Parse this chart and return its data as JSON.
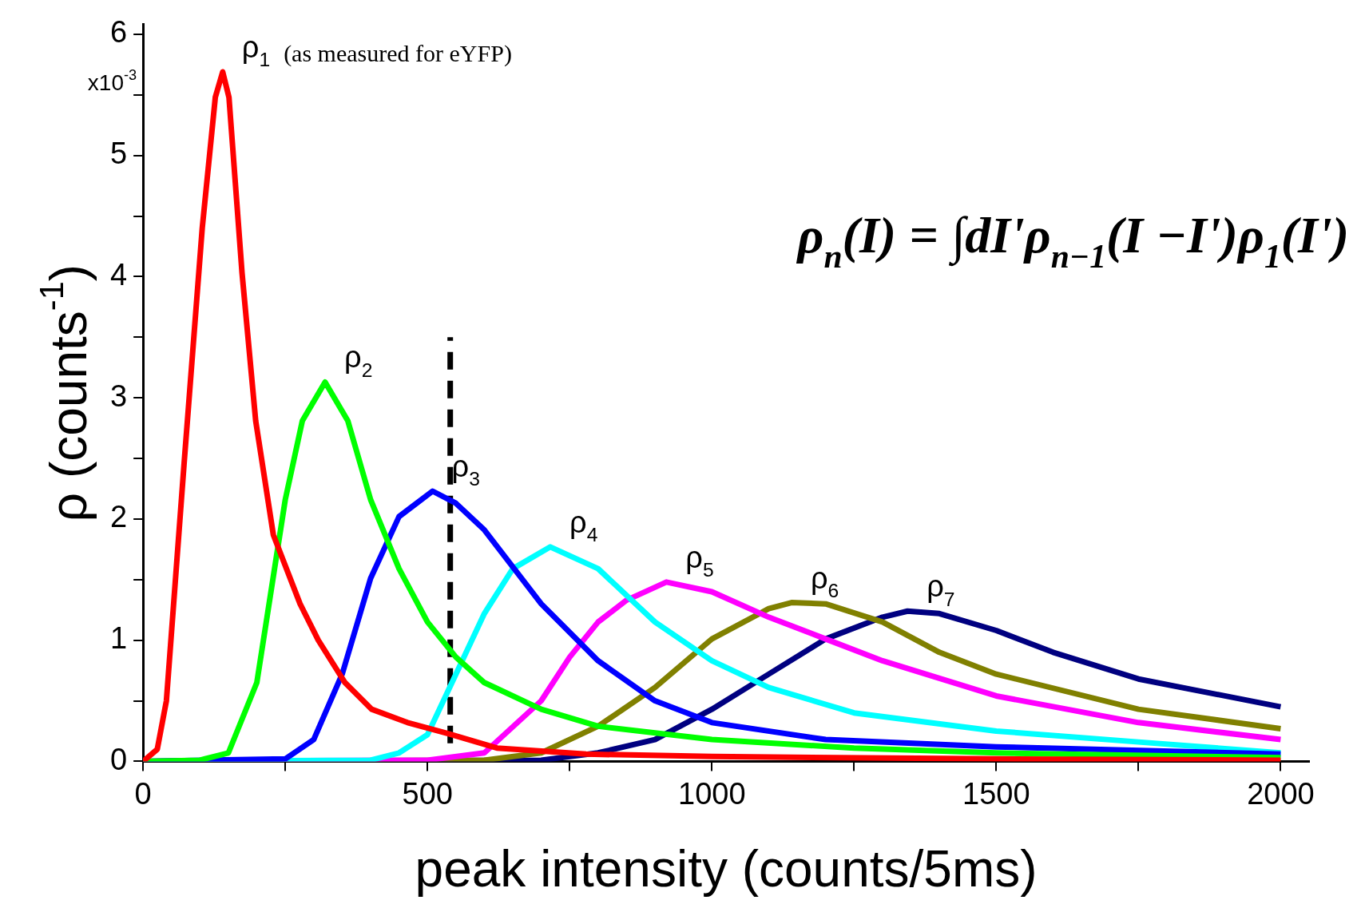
{
  "chart_data": {
    "type": "line",
    "xlabel": "peak intensity (counts/5ms)",
    "ylabel": "ρ (counts$^{-1}$)",
    "xlim": [
      0,
      2050
    ],
    "ylim": [
      0,
      6.08
    ],
    "xticks": [
      0,
      {
        "value": 250,
        "label": null
      },
      500,
      {
        "value": 750,
        "label": null
      },
      1000,
      {
        "value": 1250,
        "label": null
      },
      1500,
      {
        "value": 1750,
        "label": null
      },
      2000
    ],
    "yticks": [
      0,
      {
        "value": 0.5,
        "label": null
      },
      1,
      {
        "value": 1.5,
        "label": null
      },
      2,
      {
        "value": 2.5,
        "label": null
      },
      3,
      {
        "value": 3.5,
        "label": null
      },
      4,
      {
        "value": 4.5,
        "label": null
      },
      5,
      {
        "value": 5.5,
        "label": null
      },
      6
    ],
    "grid": false,
    "legend": false,
    "marker": "none",
    "line_style": "solid",
    "annotations": [
      "x10$^{-3}$",
      "(as measured for eYFP)",
      "ρ$_{n}$(I) = ∫dI'ρ$_{n−1}$(I −I')ρ$_{1}$(I')"
    ],
    "series": [
      {
        "name": "ρ$_{1}$",
        "color": "#ff0000",
        "x": [
          0,
          25,
          41,
          72,
          104,
          127,
          140,
          151,
          174,
          198,
          229,
          276,
          308,
          355,
          402,
          465,
          535,
          622,
          779,
          1000,
          1500,
          2000
        ],
        "values": [
          0,
          0.1,
          0.5,
          2.45,
          4.4,
          5.48,
          5.69,
          5.48,
          4.03,
          2.81,
          1.87,
          1.3,
          1.0,
          0.65,
          0.43,
          0.32,
          0.23,
          0.11,
          0.06,
          0.04,
          0.02,
          0.01
        ]
      },
      {
        "name": "ρ$_{2}$",
        "color": "#00ff00",
        "x": [
          0,
          100,
          150,
          200,
          250,
          280,
          320,
          360,
          400,
          450,
          500,
          550,
          600,
          700,
          800,
          1000,
          1250,
          1500,
          2000
        ],
        "values": [
          0,
          0.01,
          0.07,
          0.65,
          2.16,
          2.81,
          3.13,
          2.81,
          2.16,
          1.59,
          1.15,
          0.86,
          0.65,
          0.43,
          0.29,
          0.18,
          0.11,
          0.07,
          0.03
        ]
      },
      {
        "name": "ρ$_{3}$",
        "color": "#0000ff",
        "x": [
          0,
          250,
          300,
          350,
          400,
          450,
          509,
          550,
          600,
          700,
          800,
          900,
          1000,
          1200,
          1500,
          2000
        ],
        "values": [
          0,
          0.02,
          0.18,
          0.72,
          1.51,
          2.02,
          2.23,
          2.13,
          1.91,
          1.3,
          0.83,
          0.5,
          0.32,
          0.18,
          0.12,
          0.06
        ]
      },
      {
        "name": "ρ$_{4}$",
        "color": "#00ffff",
        "x": [
          0,
          400,
          450,
          500,
          550,
          600,
          650,
          716,
          800,
          900,
          1000,
          1100,
          1250,
          1500,
          1750,
          2000
        ],
        "values": [
          0,
          0.01,
          0.07,
          0.22,
          0.72,
          1.22,
          1.59,
          1.77,
          1.59,
          1.15,
          0.83,
          0.61,
          0.4,
          0.25,
          0.16,
          0.07
        ]
      },
      {
        "name": "ρ$_{5}$",
        "color": "#ff00ff",
        "x": [
          0,
          500,
          600,
          700,
          750,
          800,
          850,
          920,
          1000,
          1100,
          1200,
          1300,
          1500,
          1750,
          2000
        ],
        "values": [
          0,
          0.01,
          0.07,
          0.5,
          0.86,
          1.15,
          1.33,
          1.48,
          1.4,
          1.19,
          1.01,
          0.83,
          0.54,
          0.32,
          0.18
        ]
      },
      {
        "name": "ρ$_{6}$",
        "color": "#808000",
        "x": [
          0,
          600,
          700,
          800,
          900,
          1000,
          1100,
          1140,
          1200,
          1300,
          1400,
          1500,
          1750,
          2000
        ],
        "values": [
          0,
          0.01,
          0.07,
          0.29,
          0.61,
          1.01,
          1.26,
          1.31,
          1.3,
          1.15,
          0.9,
          0.72,
          0.43,
          0.27
        ]
      },
      {
        "name": "ρ$_{7}$",
        "color": "#000080",
        "x": [
          0,
          700,
          800,
          900,
          1000,
          1100,
          1200,
          1300,
          1344,
          1400,
          1500,
          1600,
          1750,
          2000
        ],
        "values": [
          0,
          0.01,
          0.07,
          0.18,
          0.43,
          0.72,
          1.01,
          1.19,
          1.24,
          1.22,
          1.08,
          0.9,
          0.68,
          0.45
        ]
      },
      {
        "type": "line",
        "color": "#000000",
        "line_style": "dashed",
        "x": [
          540,
          540
        ],
        "values": [
          0.15,
          3.5
        ]
      }
    ]
  }
}
